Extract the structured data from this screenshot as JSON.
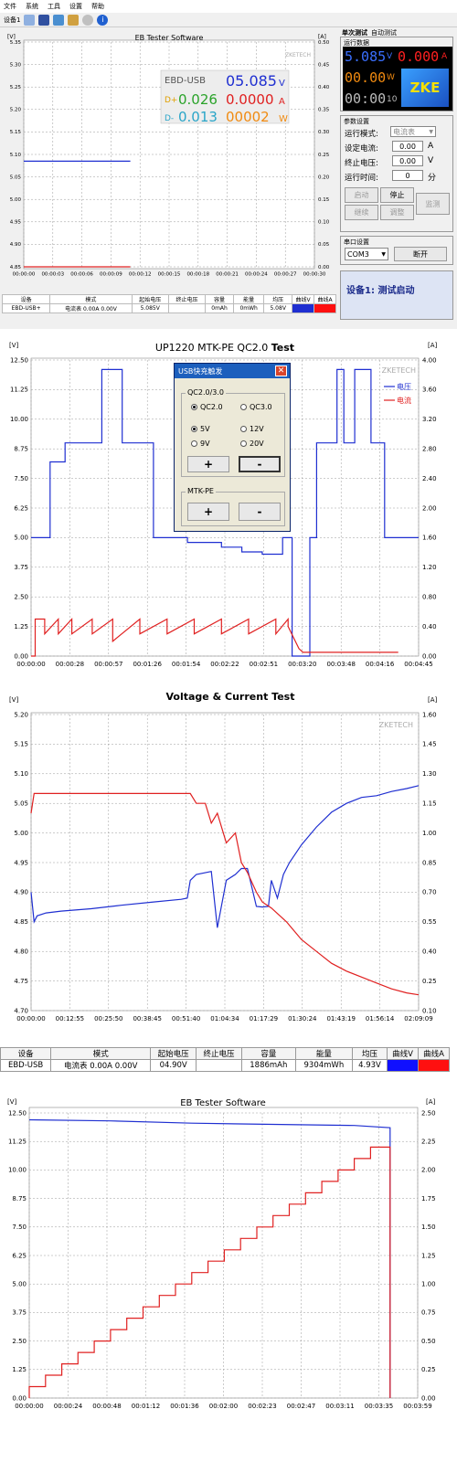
{
  "menu": [
    "文件",
    "系统",
    "工具",
    "设置",
    "帮助"
  ],
  "toolbar": {
    "device_label": "设备1"
  },
  "tabs": [
    "单次测试",
    "自动测试"
  ],
  "chart1": {
    "title": "EB Tester Software",
    "left_unit": "[V]",
    "right_unit": "[A]",
    "y_left_ticks": [
      "5.35",
      "5.30",
      "5.25",
      "5.20",
      "5.15",
      "5.10",
      "5.05",
      "5.00",
      "4.95",
      "4.90",
      "4.85"
    ],
    "y_right_ticks": [
      "0.50",
      "0.45",
      "0.40",
      "0.35",
      "0.30",
      "0.25",
      "0.20",
      "0.15",
      "0.10",
      "0.05",
      "0.00"
    ],
    "x_ticks": [
      "00:00:00",
      "00:00:03",
      "00:00:06",
      "00:00:09",
      "00:00:12",
      "00:00:15",
      "00:00:18",
      "00:00:21",
      "00:00:24",
      "00:00:27",
      "00:00:30"
    ],
    "watermark": "ZKETECH",
    "overlay": {
      "device": "EBD-USB",
      "v": "05.085",
      "v_unit": "V",
      "a": "0.0000",
      "a_unit": "A",
      "w": "00002",
      "w_unit": "W",
      "dp_label": "D+",
      "dp": "0.026",
      "dm_label": "D-",
      "dm": "0.013"
    }
  },
  "chart1_data": {
    "type": "line",
    "series": [
      {
        "color": "#1f2fd1",
        "x": [
          0,
          11
        ],
        "y": [
          5.085,
          5.085
        ]
      },
      {
        "color": "#e02020",
        "x": [
          0,
          11
        ],
        "y_right": [
          0.0,
          0.0
        ]
      }
    ],
    "ylim": [
      4.85,
      5.35
    ],
    "y2lim": [
      0,
      0.5
    ],
    "xlim": [
      0,
      30
    ]
  },
  "run_data": {
    "title": "运行数据",
    "voltage": "5.085",
    "voltage_unit": "V",
    "current": "0.000",
    "current_unit": "A",
    "power": "00.00",
    "power_unit": "W",
    "time": "00:00",
    "time_suffix": "10",
    "logo": "ZKE"
  },
  "params": {
    "title": "参数设置",
    "mode_label": "运行模式:",
    "mode_value": "电流表",
    "set_current_label": "设定电流:",
    "set_current_value": "0.00",
    "set_current_unit": "A",
    "stop_voltage_label": "终止电压:",
    "stop_voltage_value": "0.00",
    "stop_voltage_unit": "V",
    "run_time_label": "运行时间:",
    "run_time_value": "0",
    "run_time_unit": "分",
    "buttons": {
      "start": "启动",
      "stop": "停止",
      "monitor": "监测",
      "continue": "继续",
      "adjust": "调整"
    }
  },
  "port": {
    "title": "串口设置",
    "value": "COM3",
    "disconnect": "断开"
  },
  "status": "设备1: 测试启动",
  "table1": {
    "headers": [
      "设备",
      "模式",
      "起始电压",
      "终止电压",
      "容量",
      "能量",
      "均压",
      "曲线V",
      "曲线A"
    ],
    "row": [
      "EBD-USB+",
      "电流表 0.00A 0.00V",
      "5.085V",
      "",
      "0mAh",
      "0mWh",
      "5.08V"
    ]
  },
  "chart2": {
    "title_main": "UP1220 MTK-PE QC2.0 ",
    "title_tail": "Test",
    "left_unit": "[V]",
    "right_unit": "[A]",
    "y_left_ticks": [
      "12.50",
      "11.25",
      "10.00",
      "8.75",
      "7.50",
      "6.25",
      "5.00",
      "3.75",
      "2.50",
      "1.25",
      "0.00"
    ],
    "y_right_ticks": [
      "4.00",
      "3.60",
      "3.20",
      "2.80",
      "2.40",
      "2.00",
      "1.60",
      "1.20",
      "0.80",
      "0.40",
      "0.00"
    ],
    "x_ticks": [
      "00:00:00",
      "00:00:28",
      "00:00:57",
      "00:01:26",
      "00:01:54",
      "00:02:22",
      "00:02:51",
      "00:03:20",
      "00:03:48",
      "00:04:16",
      "00:04:45"
    ],
    "watermark": "ZKETECH",
    "legend": [
      {
        "label": "电压",
        "color": "#1f2fd1"
      },
      {
        "label": "电流",
        "color": "#e02020"
      }
    ]
  },
  "chart2_data": {
    "type": "line",
    "xlim": [
      0,
      285
    ],
    "ylim": [
      0,
      12.5
    ],
    "y2lim": [
      0,
      4
    ],
    "series": [
      {
        "name": "电压",
        "color": "#1f2fd1",
        "x": [
          0,
          14,
          14,
          25,
          25,
          52,
          52,
          67,
          67,
          90,
          90,
          100,
          100,
          115,
          115,
          140,
          140,
          155,
          155,
          170,
          170,
          185,
          185,
          192,
          192,
          200,
          200,
          205,
          205,
          210,
          210,
          212,
          212,
          225,
          225,
          230,
          230,
          238,
          238,
          250,
          250,
          260,
          260,
          270,
          270,
          285
        ],
        "y": [
          5.0,
          5.0,
          8.2,
          8.2,
          9.0,
          9.0,
          12.1,
          12.1,
          9.0,
          9.0,
          5.0,
          5.0,
          5.0,
          5.0,
          4.8,
          4.8,
          4.6,
          4.6,
          4.4,
          4.4,
          4.3,
          4.3,
          5.0,
          5.0,
          0.0,
          0.0,
          0.0,
          0.0,
          5.0,
          5.0,
          9.0,
          9.0,
          9.0,
          9.0,
          12.1,
          12.1,
          9.0,
          9.0,
          12.1,
          12.1,
          9.0,
          9.0,
          5.0,
          5.0,
          5.0,
          5.0
        ]
      },
      {
        "name": "电流",
        "color": "#e02020",
        "x": [
          0,
          3,
          3,
          10,
          10,
          20,
          20,
          30,
          30,
          45,
          45,
          60,
          60,
          80,
          80,
          100,
          100,
          120,
          120,
          140,
          140,
          160,
          160,
          180,
          180,
          189,
          189,
          197,
          197,
          200,
          200,
          270
        ],
        "y_right": [
          0.0,
          0.0,
          0.5,
          0.5,
          0.3,
          0.5,
          0.3,
          0.5,
          0.3,
          0.5,
          0.3,
          0.5,
          0.2,
          0.5,
          0.3,
          0.5,
          0.3,
          0.5,
          0.3,
          0.5,
          0.3,
          0.5,
          0.3,
          0.5,
          0.3,
          0.5,
          0.4,
          0.1,
          0.1,
          0.05,
          0.05,
          0.05
        ]
      }
    ]
  },
  "dialog": {
    "title": "USB快充触发",
    "group1": "QC2.0/3.0",
    "qc20": "QC2.0",
    "qc30": "QC3.0",
    "v5": "5V",
    "v12": "12V",
    "v9": "9V",
    "v20": "20V",
    "plus": "+",
    "minus": "-",
    "group2": "MTK-PE"
  },
  "chart3": {
    "title": "Voltage & Current Test",
    "left_unit": "[V]",
    "right_unit": "[A]",
    "y_left_ticks": [
      "5.20",
      "5.15",
      "5.10",
      "5.05",
      "5.00",
      "4.95",
      "4.90",
      "4.85",
      "4.80",
      "4.75",
      "4.70"
    ],
    "y_right_ticks": [
      "1.60",
      "1.45",
      "1.30",
      "1.15",
      "1.00",
      "0.85",
      "0.70",
      "0.55",
      "0.40",
      "0.25",
      "0.10"
    ],
    "x_ticks": [
      "00:00:00",
      "00:12:55",
      "00:25:50",
      "00:38:45",
      "00:51:40",
      "01:04:34",
      "01:17:29",
      "01:30:24",
      "01:43:19",
      "01:56:14",
      "02:09:09"
    ],
    "watermark": "ZKETECH"
  },
  "chart3_data": {
    "type": "line",
    "xlim": [
      0,
      129
    ],
    "ylim": [
      4.7,
      5.2
    ],
    "y2lim": [
      0.1,
      1.6
    ],
    "series": [
      {
        "color": "#1f2fd1",
        "x": [
          0,
          1,
          2,
          5,
          10,
          20,
          30,
          40,
          50,
          52,
          53,
          55,
          60,
          62,
          65,
          68,
          70,
          72,
          75,
          77,
          79,
          80,
          82,
          84,
          86,
          90,
          95,
          100,
          105,
          110,
          115,
          120,
          125,
          129
        ],
        "y": [
          4.9,
          4.85,
          4.86,
          4.865,
          4.868,
          4.872,
          4.878,
          4.883,
          4.888,
          4.89,
          4.92,
          4.93,
          4.935,
          4.84,
          4.92,
          4.93,
          4.94,
          4.94,
          4.876,
          4.875,
          4.876,
          4.92,
          4.89,
          4.93,
          4.95,
          4.98,
          5.01,
          5.035,
          5.05,
          5.06,
          5.063,
          5.07,
          5.075,
          5.08
        ]
      },
      {
        "color": "#e02020",
        "x": [
          0,
          1,
          2,
          10,
          20,
          30,
          40,
          48,
          50,
          52,
          53,
          55,
          58,
          60,
          62,
          65,
          68,
          70,
          72,
          75,
          77,
          80,
          85,
          90,
          95,
          100,
          105,
          110,
          115,
          120,
          125,
          129
        ],
        "y_right": [
          1.1,
          1.2,
          1.2,
          1.2,
          1.2,
          1.2,
          1.2,
          1.2,
          1.2,
          1.2,
          1.2,
          1.15,
          1.15,
          1.05,
          1.1,
          0.95,
          1.0,
          0.85,
          0.8,
          0.7,
          0.65,
          0.62,
          0.55,
          0.46,
          0.4,
          0.34,
          0.3,
          0.27,
          0.24,
          0.21,
          0.19,
          0.18
        ]
      }
    ]
  },
  "table2": {
    "headers": [
      "设备",
      "模式",
      "起始电压",
      "终止电压",
      "容量",
      "能量",
      "均压",
      "曲线V",
      "曲线A"
    ],
    "row": [
      "EBD-USB",
      "电流表 0.00A 0.00V",
      "04.90V",
      "",
      "1886mAh",
      "9304mWh",
      "4.93V"
    ]
  },
  "chart4": {
    "title": "EB Tester Software",
    "left_unit": "[V]",
    "right_unit": "[A]",
    "y_left_ticks": [
      "12.50",
      "11.25",
      "10.00",
      "8.75",
      "7.50",
      "6.25",
      "5.00",
      "3.75",
      "2.50",
      "1.25",
      "0.00"
    ],
    "y_right_ticks": [
      "2.50",
      "2.25",
      "2.00",
      "1.75",
      "1.50",
      "1.25",
      "1.00",
      "0.75",
      "0.50",
      "0.25",
      "0.00"
    ],
    "x_ticks": [
      "00:00:00",
      "00:00:24",
      "00:00:48",
      "00:01:12",
      "00:01:36",
      "00:02:00",
      "00:02:23",
      "00:02:47",
      "00:03:11",
      "00:03:35",
      "00:03:59"
    ]
  },
  "chart4_data": {
    "type": "line",
    "xlim": [
      0,
      239
    ],
    "ylim": [
      0,
      12.5
    ],
    "y2lim": [
      0,
      2.5
    ],
    "series": [
      {
        "color": "#1f2fd1",
        "x": [
          0,
          50,
          100,
          150,
          200,
          222,
          222
        ],
        "y": [
          12.2,
          12.15,
          12.05,
          12.0,
          11.95,
          11.85,
          0.0
        ]
      },
      {
        "color": "#e02020",
        "x": [
          0,
          0,
          10,
          10,
          20,
          20,
          30,
          30,
          40,
          40,
          50,
          50,
          60,
          60,
          70,
          70,
          80,
          80,
          90,
          90,
          100,
          100,
          110,
          110,
          120,
          120,
          130,
          130,
          140,
          140,
          150,
          150,
          160,
          160,
          170,
          170,
          180,
          180,
          190,
          190,
          200,
          200,
          210,
          210,
          220,
          220,
          222,
          222
        ],
        "y_right": [
          0.0,
          0.1,
          0.1,
          0.2,
          0.2,
          0.3,
          0.3,
          0.4,
          0.4,
          0.5,
          0.5,
          0.6,
          0.6,
          0.7,
          0.7,
          0.8,
          0.8,
          0.9,
          0.9,
          1.0,
          1.0,
          1.1,
          1.1,
          1.2,
          1.2,
          1.3,
          1.3,
          1.4,
          1.4,
          1.5,
          1.5,
          1.6,
          1.6,
          1.7,
          1.7,
          1.8,
          1.8,
          1.9,
          1.9,
          2.0,
          2.0,
          2.1,
          2.1,
          2.2,
          2.2,
          2.2,
          2.2,
          0.0
        ]
      }
    ]
  }
}
